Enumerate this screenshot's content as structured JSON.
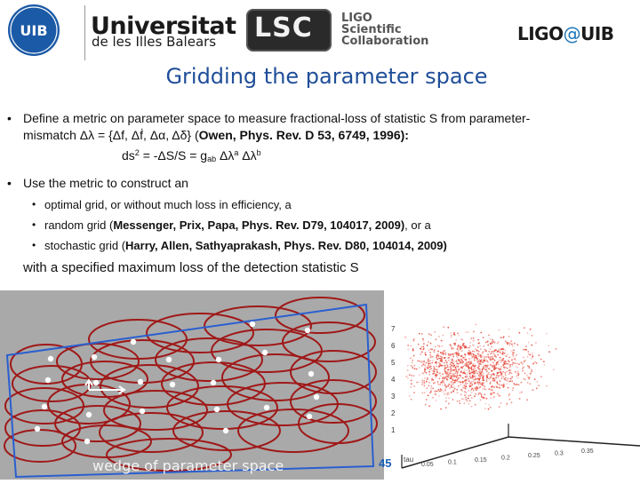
{
  "header": {
    "university_name": "Universitat",
    "university_sub": "de les Illes Balears",
    "uib_logo_text": "UIB",
    "lsc_logo_text": "LSC",
    "lsc_words": [
      "LIGO",
      "Scientific",
      "Collaboration"
    ],
    "ligo_uib_ligo": "LIGO",
    "ligo_uib_at": "@",
    "ligo_uib_uib": "UIB"
  },
  "slide": {
    "title": "Gridding the parameter space",
    "bullet_symbol": "•",
    "sub_bullet_symbol": "•",
    "bullet1": {
      "line1": "Define a metric on parameter space to measure fractional-loss of statistic S from parameter-",
      "line2_text": "mismatch Δλ = {Δf, Δḟ, Δα, Δδ} (",
      "line2_ref": "Owen, Phys. Rev. D 53, 6749, 1996):",
      "formula_a": "ds",
      "formula_sup2": "2",
      "formula_b": " = -ΔS/S = g",
      "formula_sub": "ab",
      "formula_c": " Δλ",
      "formula_supa": "a",
      "formula_d": " Δλ",
      "formula_supb": "b"
    },
    "bullet2": "Use the metric to construct an",
    "sub_items": [
      {
        "text": "optimal grid, or without much loss in efficiency, a",
        "ref": "",
        "suffix": ""
      },
      {
        "text": "random grid (",
        "ref": "Messenger, Prix, Papa, Phys. Rev. D79, 104017, 2009)",
        "suffix": ", or a"
      },
      {
        "text": "stochastic grid (",
        "ref": "Harry, Allen, Sathyaprakash, Phys. Rev. D80, 104014, 2009)",
        "suffix": ""
      }
    ],
    "closing": "with a specified maximum loss of the detection statistic S",
    "wedge_caption": "wedge of parameter space",
    "page_number": "45",
    "scatter_y_ticks": [
      "7",
      "6",
      "5",
      "4",
      "3",
      "2",
      "1"
    ],
    "scatter_x_axis_label": "tau",
    "scatter_x_ticks": [
      "0.05",
      "0.1",
      "0.15",
      "0.2",
      "0.25",
      "0.3",
      "0.35"
    ]
  },
  "colors": {
    "title": "#1f4e99",
    "uib_blue": "#1b5aa6",
    "ellipse": "#a01818",
    "wedge_outline": "#2a5fcf",
    "scatter_points": "#e33c2c",
    "page_number": "#1a5fb4"
  }
}
